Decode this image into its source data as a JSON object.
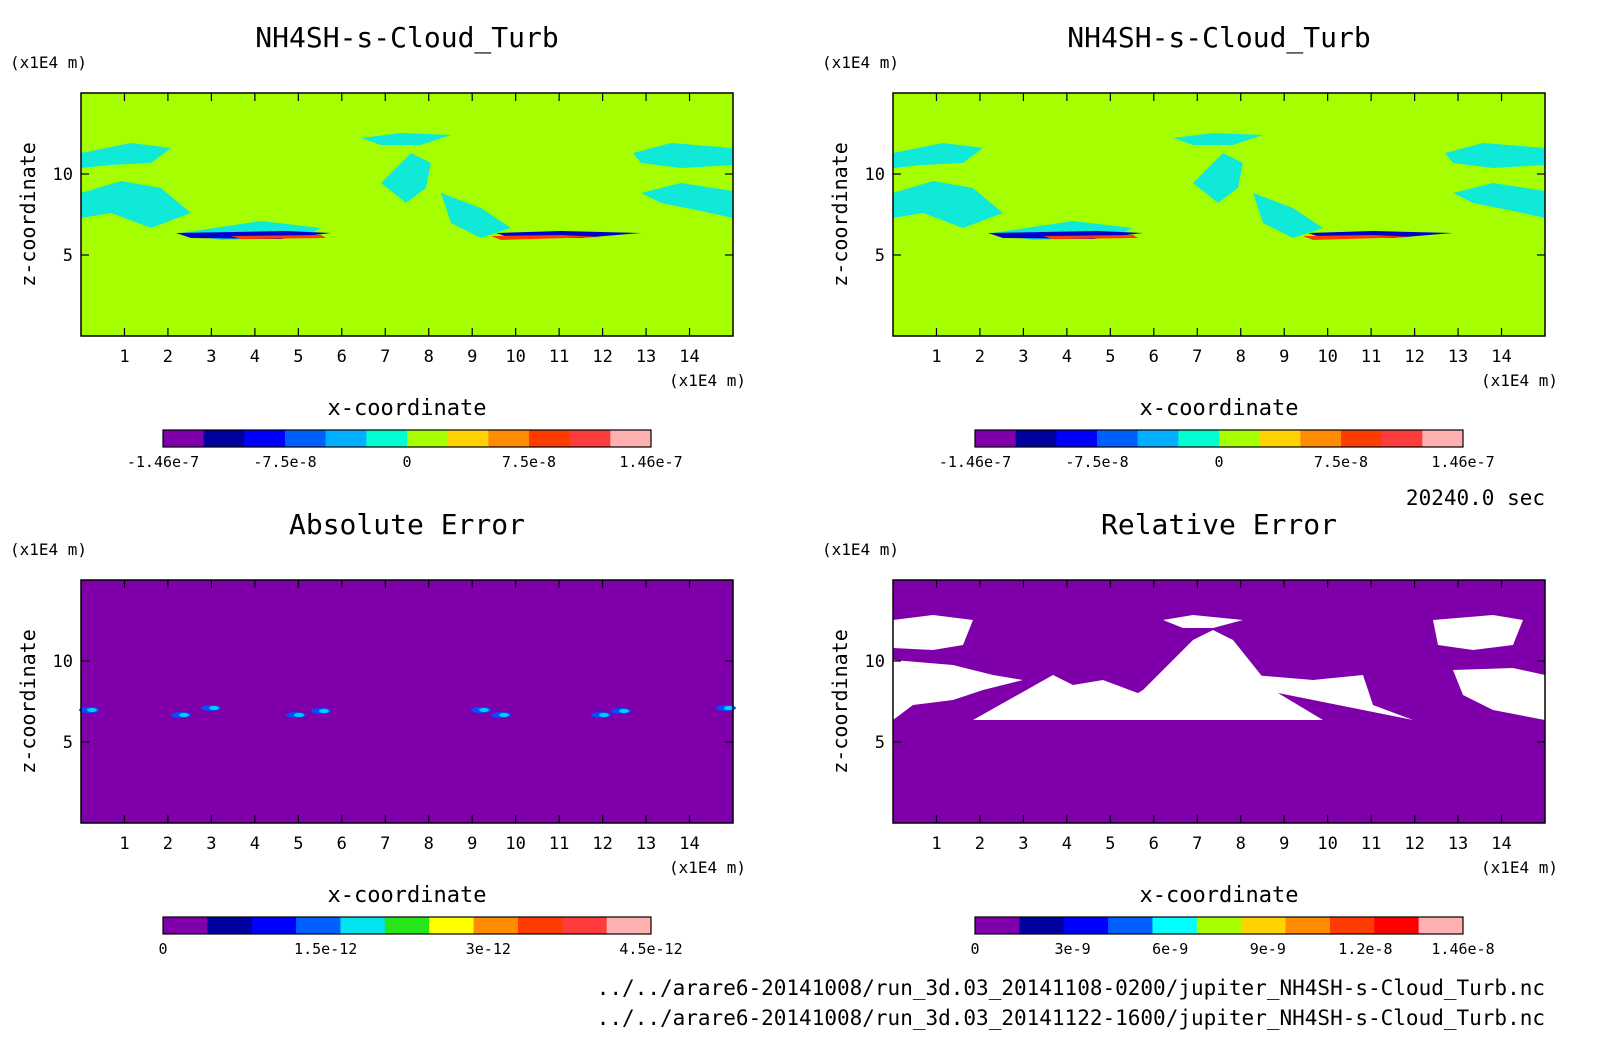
{
  "time_label": "20240.0 sec",
  "file_paths": [
    "../../arare6-20141008/run_3d.03_20141108-0200/jupiter_NH4SH-s-Cloud_Turb.nc",
    "../../arare6-20141008/run_3d.03_20141122-1600/jupiter_NH4SH-s-Cloud_Turb.nc"
  ],
  "colors": {
    "field_bg": "#a6ff00",
    "cloud": "#00e5f0",
    "abs_bg": "#7f00aa",
    "rel_bg": "#7f00aa",
    "white": "#ffffff"
  },
  "chart_data": [
    {
      "type": "heatmap",
      "title": "NH4SH-s-Cloud_Turb",
      "xlabel": "x-coordinate",
      "ylabel": "z-coordinate",
      "x_unit": "(x1E4 m)",
      "y_unit": "(x1E4 m)",
      "xlim": [
        0,
        15
      ],
      "ylim": [
        0,
        15
      ],
      "x_ticks": [
        "1",
        "2",
        "3",
        "4",
        "5",
        "6",
        "7",
        "8",
        "9",
        "10",
        "11",
        "12",
        "13",
        "14"
      ],
      "y_ticks": [
        "5",
        "10"
      ],
      "colorbar": {
        "colors": [
          "#7f00aa",
          "#00009f",
          "#0000ff",
          "#005fff",
          "#00afff",
          "#00ffd0",
          "#a6ff00",
          "#ffd200",
          "#ff8c00",
          "#ff3c00",
          "#ff3c3c",
          "#ffb0b0"
        ],
        "tick_labels": [
          "-1.46e-7",
          "-7.5e-8",
          "0",
          "7.5e-8",
          "1.46e-7"
        ]
      }
    },
    {
      "type": "heatmap",
      "title": "NH4SH-s-Cloud_Turb",
      "xlabel": "x-coordinate",
      "ylabel": "z-coordinate",
      "x_unit": "(x1E4 m)",
      "y_unit": "(x1E4 m)",
      "xlim": [
        0,
        15
      ],
      "ylim": [
        0,
        15
      ],
      "x_ticks": [
        "1",
        "2",
        "3",
        "4",
        "5",
        "6",
        "7",
        "8",
        "9",
        "10",
        "11",
        "12",
        "13",
        "14"
      ],
      "y_ticks": [
        "5",
        "10"
      ],
      "colorbar": {
        "colors": [
          "#7f00aa",
          "#00009f",
          "#0000ff",
          "#005fff",
          "#00afff",
          "#00ffd0",
          "#a6ff00",
          "#ffd200",
          "#ff8c00",
          "#ff3c00",
          "#ff3c3c",
          "#ffb0b0"
        ],
        "tick_labels": [
          "-1.46e-7",
          "-7.5e-8",
          "0",
          "7.5e-8",
          "1.46e-7"
        ]
      }
    },
    {
      "type": "heatmap",
      "title": "Absolute Error",
      "xlabel": "x-coordinate",
      "ylabel": "z-coordinate",
      "x_unit": "(x1E4 m)",
      "y_unit": "(x1E4 m)",
      "xlim": [
        0,
        15
      ],
      "ylim": [
        0,
        15
      ],
      "x_ticks": [
        "1",
        "2",
        "3",
        "4",
        "5",
        "6",
        "7",
        "8",
        "9",
        "10",
        "11",
        "12",
        "13",
        "14"
      ],
      "y_ticks": [
        "5",
        "10"
      ],
      "colorbar": {
        "colors": [
          "#7f00aa",
          "#00009f",
          "#0000ff",
          "#005fff",
          "#00e5f0",
          "#26e61a",
          "#ffff00",
          "#ff8c00",
          "#ff3c00",
          "#ff3c3c",
          "#ffb0b0"
        ],
        "tick_labels": [
          "0",
          "1.5e-12",
          "3e-12",
          "4.5e-12"
        ]
      }
    },
    {
      "type": "heatmap",
      "title": "Relative Error",
      "xlabel": "x-coordinate",
      "ylabel": "z-coordinate",
      "x_unit": "(x1E4 m)",
      "y_unit": "(x1E4 m)",
      "xlim": [
        0,
        15
      ],
      "ylim": [
        0,
        15
      ],
      "x_ticks": [
        "1",
        "2",
        "3",
        "4",
        "5",
        "6",
        "7",
        "8",
        "9",
        "10",
        "11",
        "12",
        "13",
        "14"
      ],
      "y_ticks": [
        "5",
        "10"
      ],
      "colorbar": {
        "colors": [
          "#7f00aa",
          "#00009f",
          "#0000ff",
          "#005fff",
          "#00ffff",
          "#a6ff00",
          "#ffd200",
          "#ff8c00",
          "#ff3c00",
          "#ff0000",
          "#ffb0b0"
        ],
        "tick_labels": [
          "0",
          "3e-9",
          "6e-9",
          "9e-9",
          "1.2e-8",
          "1.46e-8"
        ]
      }
    }
  ]
}
